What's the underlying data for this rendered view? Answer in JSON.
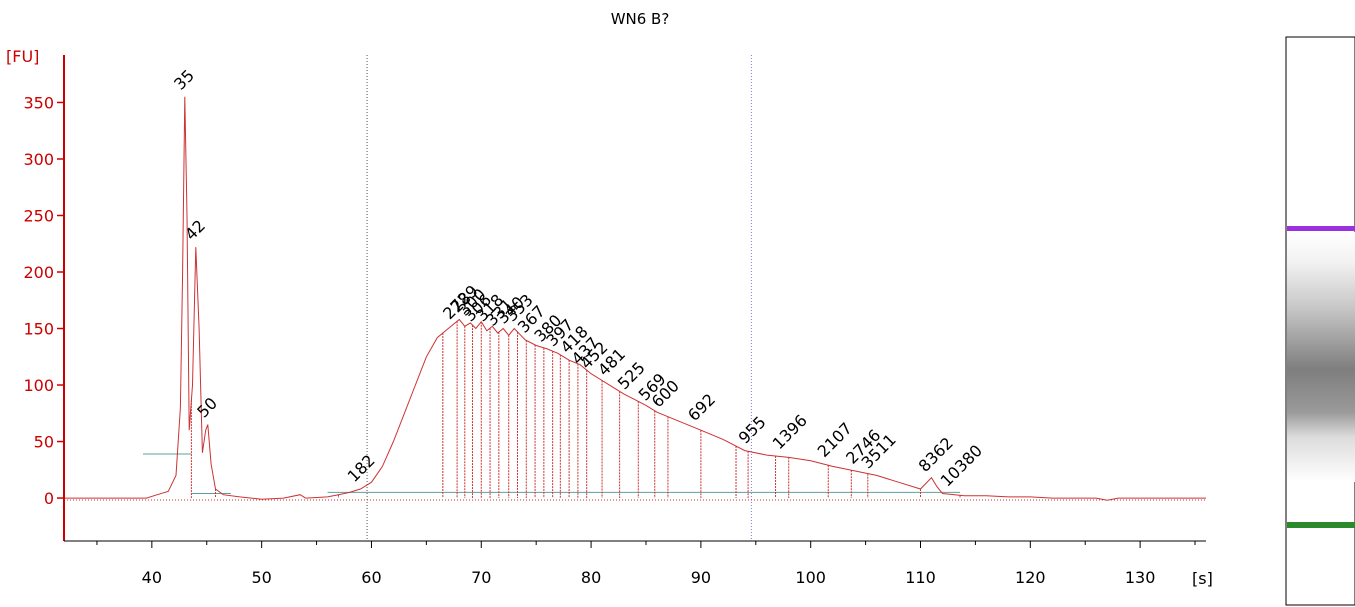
{
  "chart_data": {
    "type": "line",
    "title": "WN6 B?",
    "ylabel": "[FU]",
    "xlabel": "[s]",
    "xlim": [
      32,
      136
    ],
    "ylim": [
      -38,
      392
    ],
    "yticks": [
      0,
      50,
      100,
      150,
      200,
      250,
      300,
      350
    ],
    "xticks": [
      40,
      50,
      60,
      70,
      80,
      90,
      100,
      110,
      120,
      130
    ],
    "colors": {
      "trace": "#cc3333",
      "axis": "#cc0000",
      "marker": "#2b8a2b",
      "upper_marker": "#9b30e0",
      "baseline": "#5f9e9e"
    },
    "trace": [
      [
        32,
        0
      ],
      [
        39.5,
        0
      ],
      [
        40.5,
        3
      ],
      [
        41.5,
        6
      ],
      [
        42.2,
        20
      ],
      [
        42.6,
        80
      ],
      [
        42.8,
        200
      ],
      [
        43.0,
        355
      ],
      [
        43.2,
        250
      ],
      [
        43.4,
        60
      ],
      [
        43.7,
        100
      ],
      [
        44.0,
        222
      ],
      [
        44.3,
        150
      ],
      [
        44.6,
        40
      ],
      [
        44.9,
        60
      ],
      [
        45.1,
        65
      ],
      [
        45.4,
        30
      ],
      [
        45.8,
        8
      ],
      [
        46.5,
        3
      ],
      [
        48,
        1
      ],
      [
        50,
        -1
      ],
      [
        52,
        0
      ],
      [
        53.5,
        3
      ],
      [
        54,
        0
      ],
      [
        56,
        1
      ],
      [
        57,
        3
      ],
      [
        58,
        5
      ],
      [
        59,
        8
      ],
      [
        60,
        14
      ],
      [
        61,
        28
      ],
      [
        62,
        50
      ],
      [
        63,
        75
      ],
      [
        64,
        100
      ],
      [
        65,
        125
      ],
      [
        66,
        142
      ],
      [
        67,
        150
      ],
      [
        68,
        158
      ],
      [
        68.5,
        152
      ],
      [
        69,
        155
      ],
      [
        69.5,
        150
      ],
      [
        70,
        156
      ],
      [
        70.5,
        148
      ],
      [
        71,
        152
      ],
      [
        71.5,
        146
      ],
      [
        72,
        150
      ],
      [
        72.5,
        144
      ],
      [
        73,
        150
      ],
      [
        73.5,
        145
      ],
      [
        74,
        140
      ],
      [
        75,
        135
      ],
      [
        76,
        132
      ],
      [
        77,
        128
      ],
      [
        78,
        122
      ],
      [
        79,
        118
      ],
      [
        80,
        110
      ],
      [
        81,
        104
      ],
      [
        82,
        98
      ],
      [
        83,
        92
      ],
      [
        84,
        87
      ],
      [
        85,
        82
      ],
      [
        86,
        76
      ],
      [
        87,
        72
      ],
      [
        88,
        68
      ],
      [
        90,
        60
      ],
      [
        92,
        52
      ],
      [
        94,
        42
      ],
      [
        96,
        38
      ],
      [
        98,
        36
      ],
      [
        100,
        33
      ],
      [
        102,
        28
      ],
      [
        104,
        24
      ],
      [
        106,
        20
      ],
      [
        108,
        14
      ],
      [
        110,
        8
      ],
      [
        111,
        18
      ],
      [
        111.5,
        10
      ],
      [
        112,
        4
      ],
      [
        114,
        2
      ],
      [
        116,
        2
      ],
      [
        118,
        1
      ],
      [
        120,
        1
      ],
      [
        122,
        0
      ],
      [
        124,
        0
      ],
      [
        126,
        0
      ],
      [
        127,
        -2
      ],
      [
        128,
        0
      ],
      [
        130,
        0
      ],
      [
        132,
        0
      ],
      [
        136,
        0
      ]
    ],
    "peaks": [
      {
        "label": "35",
        "x": 43.0,
        "y": 355,
        "color": "#2b8a2b"
      },
      {
        "label": "42",
        "x": 44.0,
        "y": 222
      },
      {
        "label": "50",
        "x": 45.1,
        "y": 65
      },
      {
        "label": "182",
        "x": 58.8,
        "y": 8
      },
      {
        "label": "272",
        "x": 67.5,
        "y": 152
      },
      {
        "label": "289",
        "x": 68.2,
        "y": 158
      },
      {
        "label": "300",
        "x": 68.9,
        "y": 155
      },
      {
        "label": "306",
        "x": 69.4,
        "y": 150
      },
      {
        "label": "318",
        "x": 70.5,
        "y": 150
      },
      {
        "label": "331",
        "x": 71.4,
        "y": 146
      },
      {
        "label": "340",
        "x": 72.4,
        "y": 148
      },
      {
        "label": "353",
        "x": 73.2,
        "y": 150
      },
      {
        "label": "367",
        "x": 74.3,
        "y": 140
      },
      {
        "label": "380",
        "x": 75.8,
        "y": 132
      },
      {
        "label": "397",
        "x": 76.9,
        "y": 128
      },
      {
        "label": "418",
        "x": 78.2,
        "y": 122
      },
      {
        "label": "437",
        "x": 79.2,
        "y": 112
      },
      {
        "label": "452",
        "x": 80.0,
        "y": 108
      },
      {
        "label": "481",
        "x": 81.6,
        "y": 102
      },
      {
        "label": "525",
        "x": 83.4,
        "y": 90
      },
      {
        "label": "569",
        "x": 85.3,
        "y": 80
      },
      {
        "label": "600",
        "x": 86.5,
        "y": 74
      },
      {
        "label": "692",
        "x": 89.8,
        "y": 62
      },
      {
        "label": "955",
        "x": 94.4,
        "y": 42
      },
      {
        "label": "1396",
        "x": 97.5,
        "y": 37
      },
      {
        "label": "2107",
        "x": 101.6,
        "y": 30
      },
      {
        "label": "2746",
        "x": 104.2,
        "y": 24
      },
      {
        "label": "3511",
        "x": 105.6,
        "y": 20
      },
      {
        "label": "8362",
        "x": 110.8,
        "y": 17
      },
      {
        "label": "10380",
        "x": 112.8,
        "y": 4,
        "color": "#9b30e0"
      }
    ],
    "drop_lines_x": [
      43.6,
      45.8,
      57,
      66.5,
      67.8,
      68.5,
      69.2,
      70,
      70.8,
      71.6,
      72.5,
      73.3,
      74.1,
      74.9,
      75.7,
      76.5,
      77.2,
      78,
      78.8,
      79.6,
      81,
      82.6,
      84.3,
      85.8,
      87,
      90,
      93.2,
      94.3,
      96.8,
      98,
      101.6,
      103.7,
      105.2,
      110,
      113.6
    ],
    "dotted_guides_x": [
      59.6,
      94.6
    ],
    "baseline_segments": [
      [
        39.2,
        43.6,
        39
      ],
      [
        43.6,
        47.2,
        4
      ],
      [
        56,
        94.6,
        5
      ],
      [
        94.6,
        113.6,
        5
      ]
    ],
    "gel": {
      "upper_marker_color": "#9b30e0",
      "lower_marker_color": "#2b8a2b"
    }
  }
}
